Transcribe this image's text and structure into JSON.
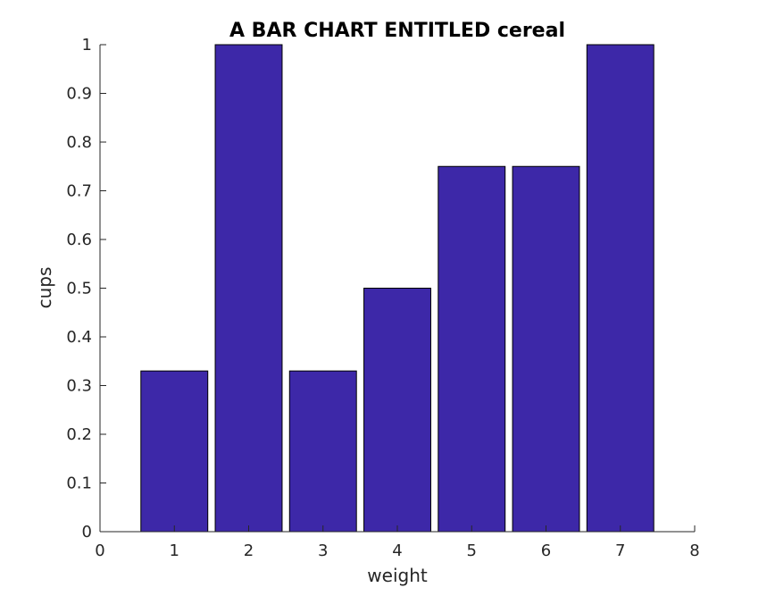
{
  "chart_data": {
    "type": "bar",
    "title": "A BAR CHART ENTITLED cereal",
    "xlabel": "weight",
    "ylabel": "cups",
    "categories": [
      1,
      2,
      3,
      4,
      5,
      6,
      7
    ],
    "values": [
      0.33,
      1.0,
      0.33,
      0.5,
      0.75,
      0.75,
      1.0
    ],
    "xlim": [
      0,
      8
    ],
    "ylim": [
      0,
      1
    ],
    "x_ticks": [
      "0",
      "1",
      "2",
      "3",
      "4",
      "5",
      "6",
      "7",
      "8"
    ],
    "y_ticks": [
      "0",
      "0.1",
      "0.2",
      "0.3",
      "0.4",
      "0.5",
      "0.6",
      "0.7",
      "0.8",
      "0.9",
      "1"
    ],
    "bar_color": "#3d28a8",
    "grid": false,
    "legend": "none"
  }
}
